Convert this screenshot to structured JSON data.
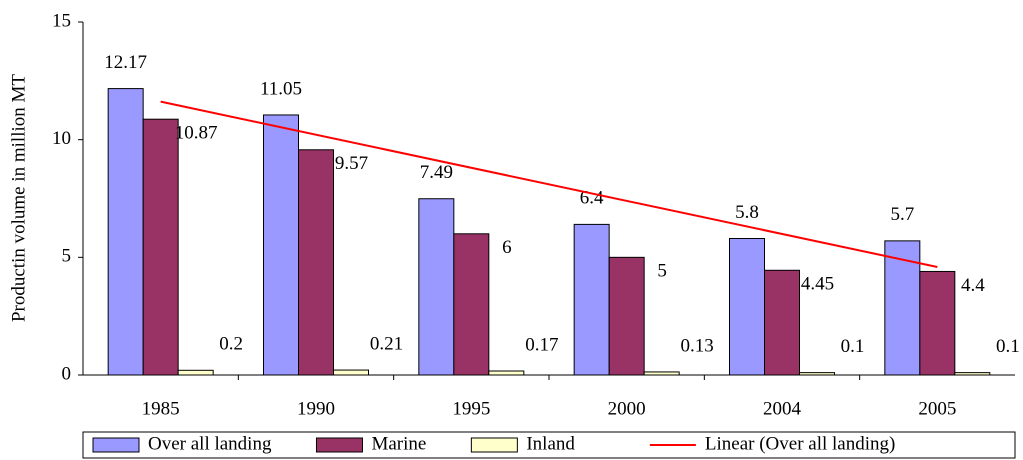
{
  "chart_data": {
    "type": "bar",
    "y_label": "Productin volume in million MT",
    "categories": [
      "1985",
      "1990",
      "1995",
      "2000",
      "2004",
      "2005"
    ],
    "series": [
      {
        "name": "Over all landing",
        "color": "#9999ff",
        "values": [
          12.17,
          11.05,
          7.49,
          6.4,
          5.8,
          5.7
        ]
      },
      {
        "name": "Marine",
        "color": "#993366",
        "values": [
          10.87,
          9.57,
          6,
          5,
          4.45,
          4.4
        ]
      },
      {
        "name": "Inland",
        "color": "#ffffcc",
        "values": [
          0.2,
          0.21,
          0.17,
          0.13,
          0.1,
          0.1
        ]
      }
    ],
    "trendline": {
      "name": "Linear (Over all landing)",
      "color": "#ff0000",
      "of_series": 0,
      "kind": "linear"
    },
    "ylim": [
      0,
      15
    ],
    "yticks": [
      0,
      5,
      10,
      15
    ],
    "grid": false,
    "legend": "bottom"
  }
}
